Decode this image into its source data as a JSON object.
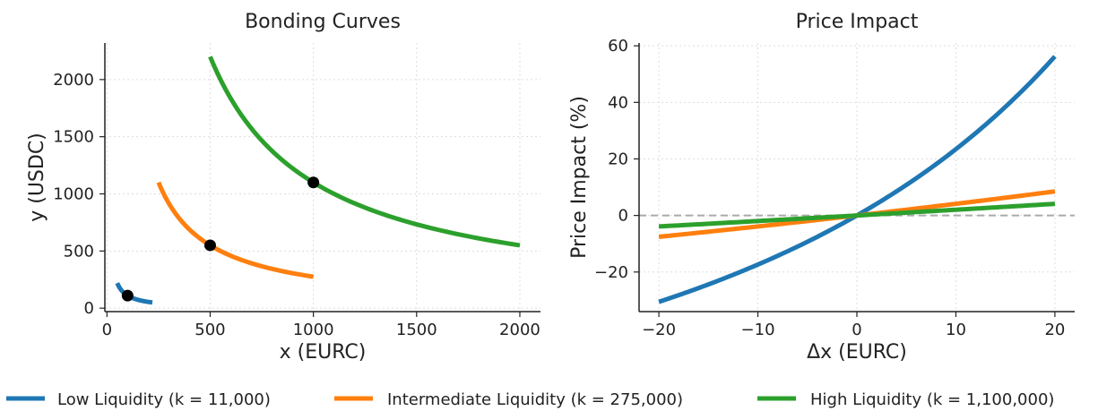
{
  "colors": {
    "low": "#1f77b4",
    "mid": "#ff7f0e",
    "high": "#2ca02c",
    "marker": "#000000",
    "zero_line": "#aaaaaa"
  },
  "legend": {
    "items": [
      {
        "key": "low",
        "label": "Low Liquidity (k = 11,000)"
      },
      {
        "key": "mid",
        "label": "Intermediate Liquidity (k = 275,000)"
      },
      {
        "key": "high",
        "label": "High Liquidity (k = 1,100,000)"
      }
    ],
    "placement": "bottom-center"
  },
  "chart_data": [
    {
      "type": "line",
      "title": "Bonding Curves",
      "xlabel": "x (EURC)",
      "ylabel": "y (USDC)",
      "xlim": [
        -10,
        2100
      ],
      "ylim": [
        -30,
        2320
      ],
      "xticks": [
        0,
        500,
        1000,
        1500,
        2000
      ],
      "yticks": [
        0,
        500,
        1000,
        1500,
        2000
      ],
      "grid": true,
      "series": [
        {
          "name": "Low Liquidity (k = 11,000)",
          "key": "low",
          "k": 11000,
          "x_range": [
            50,
            220
          ],
          "current_point": [
            100,
            110
          ]
        },
        {
          "name": "Intermediate Liquidity (k = 275,000)",
          "key": "mid",
          "k": 275000,
          "x_range": [
            250,
            1000
          ],
          "current_point": [
            500,
            550
          ]
        },
        {
          "name": "High Liquidity (k = 1,100,000)",
          "key": "high",
          "k": 1100000,
          "x_range": [
            500,
            2000
          ],
          "current_point": [
            1000,
            1100
          ]
        }
      ]
    },
    {
      "type": "line",
      "title": "Price Impact",
      "xlabel": "Δx (EURC)",
      "ylabel": "Price Impact (%)",
      "xlim": [
        -22,
        22
      ],
      "ylim": [
        -34,
        61
      ],
      "xticks": [
        -20,
        -10,
        0,
        10,
        20
      ],
      "yticks": [
        -20,
        0,
        20,
        40,
        60
      ],
      "grid": true,
      "reference_line_y": 0,
      "series": [
        {
          "name": "Low Liquidity (k = 11,000)",
          "key": "low",
          "x0": 100,
          "x_range": [
            -20,
            20
          ],
          "endpoints": [
            [
              -20,
              -30.6
            ],
            [
              0,
              0
            ],
            [
              20,
              56.25
            ]
          ]
        },
        {
          "name": "Intermediate Liquidity (k = 275,000)",
          "key": "mid",
          "x0": 500,
          "x_range": [
            -20,
            20
          ],
          "endpoints": [
            [
              -20,
              -7.8
            ],
            [
              0,
              0
            ],
            [
              20,
              8.2
            ]
          ]
        },
        {
          "name": "High Liquidity (k = 1,100,000)",
          "key": "high",
          "x0": 1000,
          "x_range": [
            -20,
            20
          ],
          "endpoints": [
            [
              -20,
              -3.96
            ],
            [
              0,
              0
            ],
            [
              20,
              4.0
            ]
          ]
        }
      ]
    }
  ]
}
